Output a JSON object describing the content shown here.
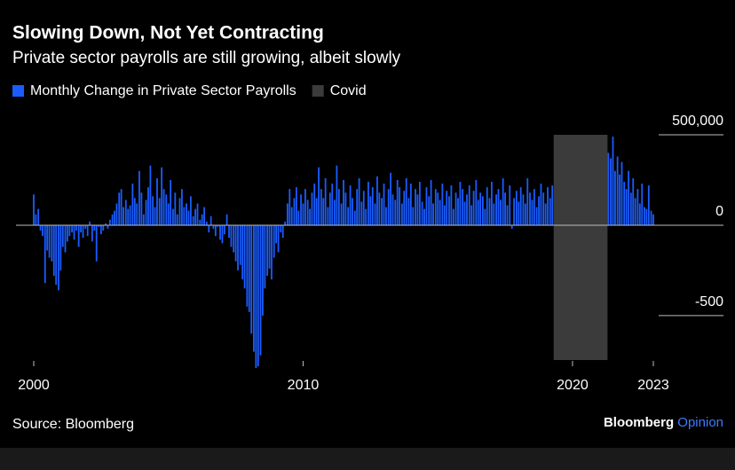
{
  "chart_data": {
    "type": "bar",
    "title": "Slowing Down, Not Yet Contracting",
    "subtitle": "Private sector payrolls are still growing, albeit slowly",
    "source": "Source: Bloomberg",
    "brand": "Bloomberg",
    "brand_suffix": "Opinion",
    "x": [
      2000,
      2000.08,
      2000.17,
      2000.25,
      2000.33,
      2000.42,
      2000.5,
      2000.58,
      2000.67,
      2000.75,
      2000.83,
      2000.92,
      2001,
      2001.08,
      2001.17,
      2001.25,
      2001.33,
      2001.42,
      2001.5,
      2001.58,
      2001.67,
      2001.75,
      2001.83,
      2001.92,
      2002,
      2002.08,
      2002.17,
      2002.25,
      2002.33,
      2002.42,
      2002.5,
      2002.58,
      2002.67,
      2002.75,
      2002.83,
      2002.92,
      2003,
      2003.08,
      2003.17,
      2003.25,
      2003.33,
      2003.42,
      2003.5,
      2003.58,
      2003.67,
      2003.75,
      2003.83,
      2003.92,
      2004,
      2004.08,
      2004.17,
      2004.25,
      2004.33,
      2004.42,
      2004.5,
      2004.58,
      2004.67,
      2004.75,
      2004.83,
      2004.92,
      2005,
      2005.08,
      2005.17,
      2005.25,
      2005.33,
      2005.42,
      2005.5,
      2005.58,
      2005.67,
      2005.75,
      2005.83,
      2005.92,
      2006,
      2006.08,
      2006.17,
      2006.25,
      2006.33,
      2006.42,
      2006.5,
      2006.58,
      2006.67,
      2006.75,
      2006.83,
      2006.92,
      2007,
      2007.08,
      2007.17,
      2007.25,
      2007.33,
      2007.42,
      2007.5,
      2007.58,
      2007.67,
      2007.75,
      2007.83,
      2007.92,
      2008,
      2008.08,
      2008.17,
      2008.25,
      2008.33,
      2008.42,
      2008.5,
      2008.58,
      2008.67,
      2008.75,
      2008.83,
      2008.92,
      2009,
      2009.08,
      2009.17,
      2009.25,
      2009.33,
      2009.42,
      2009.5,
      2009.58,
      2009.67,
      2009.75,
      2009.83,
      2009.92,
      2010,
      2010.08,
      2010.17,
      2010.25,
      2010.33,
      2010.42,
      2010.5,
      2010.58,
      2010.67,
      2010.75,
      2010.83,
      2010.92,
      2011,
      2011.08,
      2011.17,
      2011.25,
      2011.33,
      2011.42,
      2011.5,
      2011.58,
      2011.67,
      2011.75,
      2011.83,
      2011.92,
      2012,
      2012.08,
      2012.17,
      2012.25,
      2012.33,
      2012.42,
      2012.5,
      2012.58,
      2012.67,
      2012.75,
      2012.83,
      2012.92,
      2013,
      2013.08,
      2013.17,
      2013.25,
      2013.33,
      2013.42,
      2013.5,
      2013.58,
      2013.67,
      2013.75,
      2013.83,
      2013.92,
      2014,
      2014.08,
      2014.17,
      2014.25,
      2014.33,
      2014.42,
      2014.5,
      2014.58,
      2014.67,
      2014.75,
      2014.83,
      2014.92,
      2015,
      2015.08,
      2015.17,
      2015.25,
      2015.33,
      2015.42,
      2015.5,
      2015.58,
      2015.67,
      2015.75,
      2015.83,
      2015.92,
      2016,
      2016.08,
      2016.17,
      2016.25,
      2016.33,
      2016.42,
      2016.5,
      2016.58,
      2016.67,
      2016.75,
      2016.83,
      2016.92,
      2017,
      2017.08,
      2017.17,
      2017.25,
      2017.33,
      2017.42,
      2017.5,
      2017.58,
      2017.67,
      2017.75,
      2017.83,
      2017.92,
      2018,
      2018.08,
      2018.17,
      2018.25,
      2018.33,
      2018.42,
      2018.5,
      2018.58,
      2018.67,
      2018.75,
      2018.83,
      2018.92,
      2019,
      2019.08,
      2019.17,
      2019.25,
      2019.33,
      2019.42,
      2019.5,
      2019.58,
      2019.67,
      2019.75,
      2019.83,
      2019.92,
      2020,
      2020.08,
      2020.17,
      2020.25,
      2020.33,
      2020.42,
      2020.5,
      2020.58,
      2020.67,
      2020.75,
      2020.83,
      2020.92,
      2021,
      2021.08,
      2021.17,
      2021.25,
      2021.33,
      2021.42,
      2021.5,
      2021.58,
      2021.67,
      2021.75,
      2021.83,
      2021.92,
      2022,
      2022.08,
      2022.17,
      2022.25,
      2022.33,
      2022.42,
      2022.5,
      2022.58,
      2022.67,
      2022.75,
      2022.83,
      2022.92,
      2023
    ],
    "series": [
      {
        "name": "Monthly Change in Private Sector Payrolls",
        "color": "#1a5cff",
        "values": [
          170,
          60,
          90,
          -30,
          -60,
          -320,
          -140,
          -180,
          -200,
          -280,
          -330,
          -360,
          -250,
          -120,
          -150,
          -90,
          -60,
          -40,
          -80,
          -30,
          -120,
          -40,
          -70,
          -20,
          -60,
          20,
          -90,
          -30,
          -200,
          -10,
          -50,
          -30,
          10,
          -20,
          30,
          60,
          80,
          120,
          180,
          200,
          100,
          140,
          90,
          110,
          230,
          150,
          120,
          300,
          180,
          60,
          140,
          210,
          330,
          160,
          100,
          260,
          150,
          320,
          200,
          170,
          120,
          250,
          90,
          180,
          60,
          150,
          200,
          100,
          120,
          80,
          160,
          50,
          90,
          120,
          30,
          60,
          100,
          20,
          -40,
          50,
          -20,
          -60,
          -10,
          -80,
          -100,
          -50,
          60,
          -70,
          -120,
          -150,
          -200,
          -250,
          -220,
          -300,
          -350,
          -450,
          -480,
          -600,
          -700,
          -790,
          -780,
          -720,
          -500,
          -350,
          -280,
          -240,
          -300,
          -180,
          -100,
          -150,
          -40,
          -70,
          20,
          120,
          200,
          100,
          150,
          210,
          80,
          170,
          120,
          200,
          140,
          90,
          180,
          230,
          150,
          320,
          200,
          150,
          260,
          100,
          180,
          230,
          140,
          330,
          200,
          120,
          250,
          180,
          100,
          220,
          150,
          80,
          200,
          260,
          130,
          190,
          90,
          240,
          160,
          210,
          120,
          270,
          180,
          150,
          230,
          100,
          200,
          290,
          170,
          140,
          250,
          210,
          120,
          190,
          260,
          150,
          230,
          100,
          200,
          170,
          240,
          130,
          90,
          210,
          160,
          250,
          120,
          200,
          180,
          140,
          230,
          110,
          190,
          160,
          220,
          90,
          180,
          150,
          240,
          200,
          130,
          170,
          220,
          110,
          190,
          250,
          140,
          180,
          160,
          90,
          210,
          150,
          240,
          120,
          170,
          200,
          140,
          260,
          180,
          110,
          220,
          -20,
          150,
          190,
          130,
          210,
          170,
          120,
          260,
          180,
          140,
          200,
          100,
          160,
          230,
          180,
          120,
          210,
          150,
          220,
          null,
          null,
          null,
          null,
          null,
          null,
          null,
          null,
          null,
          null,
          null,
          null,
          null,
          null,
          null,
          null,
          null,
          null,
          null,
          null,
          null,
          null,
          null,
          null,
          400,
          370,
          490,
          300,
          380,
          280,
          350,
          240,
          200,
          300,
          180,
          260,
          150,
          200,
          120,
          230,
          100,
          90,
          220,
          80,
          60
        ]
      },
      {
        "name": "Covid",
        "color": "#3b3b3b",
        "span": [
          2019.3,
          2021.3
        ]
      }
    ],
    "xlim": [
      2000,
      2023
    ],
    "xticks": [
      2000,
      2010,
      2020,
      2023
    ],
    "ylim": [
      -790,
      500
    ],
    "yticks": [
      {
        "value": 500,
        "label": "500,000"
      },
      0,
      -500
    ]
  }
}
